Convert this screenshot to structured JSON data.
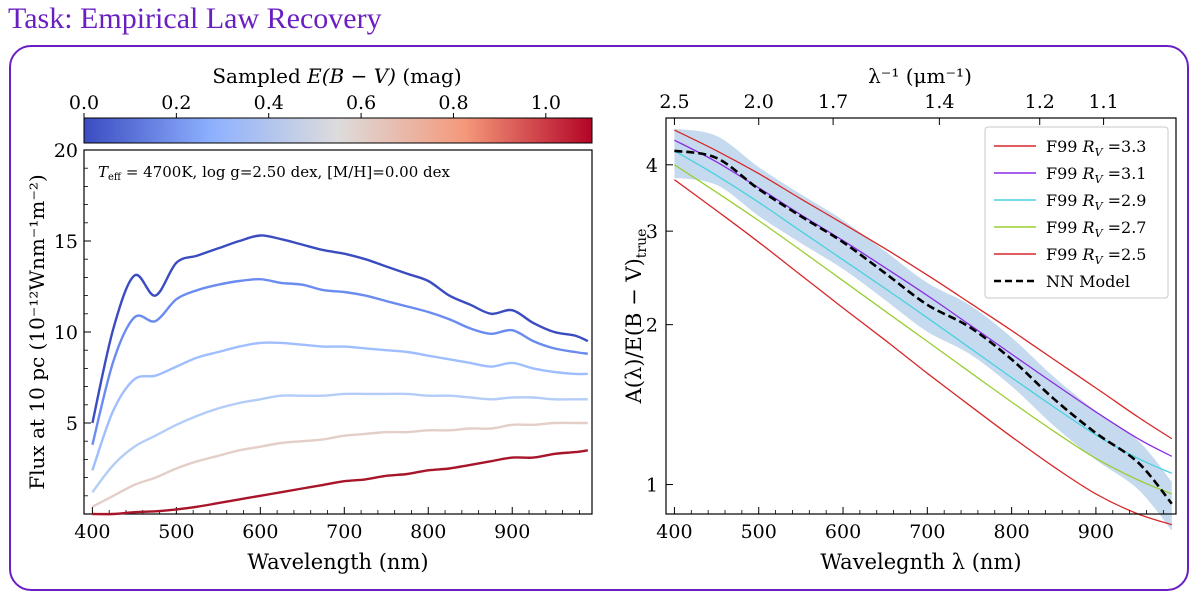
{
  "header": {
    "title": "Task: Empirical Law Recovery"
  },
  "chart_data": [
    {
      "type": "line",
      "title": "",
      "xlabel": "Wavelength (nm)",
      "ylabel": "Flux at 10 pc (10⁻¹²Wnm⁻¹m⁻²)",
      "xlim": [
        390,
        995
      ],
      "ylim": [
        0,
        20
      ],
      "xticks": [
        "400",
        "500",
        "600",
        "700",
        "800",
        "900"
      ],
      "yticks": [
        "5",
        "10",
        "15",
        "20"
      ],
      "annotation": "T_eff = 4700K, log g=2.50 dex, [M/H]=0.00 dex",
      "annotation_parts": {
        "teff": "T",
        "teff_sub": "eff",
        "teff_rest": " = 4700K, log g=2.50 dex, [M/H]=0.00 dex"
      },
      "colorbar": {
        "label": "Sampled E(B − V) (mag)",
        "label_parts": [
          "Sampled ",
          "E(B − V)",
          " (mag)"
        ],
        "range": [
          0.0,
          1.1
        ],
        "ticks": [
          "0.0",
          "0.2",
          "0.4",
          "0.6",
          "0.8",
          "1.0"
        ],
        "colors": [
          "#3b4cc0",
          "#8db0fe",
          "#dddcdc",
          "#f4987a",
          "#b40426"
        ]
      },
      "x": [
        400,
        425,
        450,
        475,
        500,
        525,
        550,
        575,
        600,
        625,
        650,
        675,
        700,
        725,
        750,
        775,
        800,
        825,
        850,
        875,
        900,
        925,
        950,
        975,
        990
      ],
      "series": [
        {
          "name": "E(B-V)=0.00",
          "color": "#3b4cc0",
          "values": [
            5.0,
            10.2,
            13.1,
            12.0,
            13.8,
            14.2,
            14.6,
            15.0,
            15.3,
            15.1,
            14.8,
            14.5,
            14.3,
            14.0,
            13.6,
            13.2,
            12.8,
            12.0,
            11.5,
            11.0,
            11.2,
            10.5,
            10.0,
            9.8,
            9.5
          ]
        },
        {
          "name": "E(B-V)=0.22",
          "color": "#6a8bef",
          "values": [
            3.8,
            8.4,
            10.8,
            10.6,
            11.8,
            12.3,
            12.6,
            12.8,
            12.9,
            12.7,
            12.6,
            12.3,
            12.2,
            12.0,
            11.7,
            11.4,
            11.1,
            10.7,
            10.2,
            9.9,
            10.1,
            9.5,
            9.1,
            8.9,
            8.8
          ]
        },
        {
          "name": "E(B-V)=0.44",
          "color": "#9ebeff",
          "values": [
            2.4,
            5.7,
            7.4,
            7.6,
            8.1,
            8.6,
            8.9,
            9.2,
            9.4,
            9.4,
            9.3,
            9.2,
            9.2,
            9.1,
            9.0,
            8.9,
            8.7,
            8.5,
            8.3,
            8.1,
            8.3,
            8.0,
            7.8,
            7.7,
            7.7
          ]
        },
        {
          "name": "E(B-V)=0.66",
          "color": "#b3cdf7",
          "values": [
            1.2,
            2.7,
            3.7,
            4.3,
            4.9,
            5.4,
            5.8,
            6.1,
            6.3,
            6.5,
            6.5,
            6.5,
            6.6,
            6.6,
            6.6,
            6.6,
            6.5,
            6.5,
            6.4,
            6.3,
            6.4,
            6.4,
            6.3,
            6.3,
            6.3
          ]
        },
        {
          "name": "E(B-V)=0.88",
          "color": "#e3cfc8",
          "values": [
            0.4,
            1.0,
            1.6,
            2.0,
            2.5,
            2.9,
            3.2,
            3.5,
            3.7,
            3.9,
            4.0,
            4.1,
            4.3,
            4.4,
            4.5,
            4.5,
            4.6,
            4.6,
            4.7,
            4.7,
            4.9,
            4.9,
            5.0,
            5.0,
            5.0
          ]
        },
        {
          "name": "E(B-V)=1.10",
          "color": "#a8152a",
          "values": [
            0.0,
            0.0,
            0.1,
            0.15,
            0.25,
            0.4,
            0.6,
            0.8,
            1.0,
            1.2,
            1.4,
            1.6,
            1.8,
            1.9,
            2.1,
            2.2,
            2.4,
            2.5,
            2.7,
            2.9,
            3.1,
            3.1,
            3.3,
            3.4,
            3.5
          ]
        }
      ]
    },
    {
      "type": "line",
      "title": "",
      "xlabel": "Wavelegnth λ (nm)",
      "ylabel": "A(λ)/E(B − V)_true",
      "ylabel_parts": {
        "main": "A(λ)/E(B − V)",
        "sub": "true"
      },
      "xlim": [
        390,
        995
      ],
      "yscale": "log",
      "ylim": [
        0.88,
        4.9
      ],
      "xticks": [
        "400",
        "500",
        "600",
        "700",
        "800",
        "900"
      ],
      "yticks": [
        "1",
        "2",
        "3",
        "4"
      ],
      "top_axis": {
        "label": "λ⁻¹ (μm⁻¹)",
        "ticks": [
          "2.5",
          "2.0",
          "1.7",
          "1.4",
          "1.2",
          "1.1"
        ],
        "tick_values_inv_um": [
          2.5,
          2.0,
          1.7,
          1.4,
          1.2,
          1.1
        ]
      },
      "legend": {
        "position": "top-right"
      },
      "x": [
        400,
        450,
        500,
        550,
        600,
        650,
        700,
        750,
        800,
        850,
        900,
        950,
        990
      ],
      "series": [
        {
          "name": "F99 R_V =3.3",
          "label_parts": [
            "F99 ",
            "R",
            "V",
            " =3.3"
          ],
          "color": "#d62728",
          "dash": "solid",
          "values": [
            4.65,
            4.25,
            3.85,
            3.45,
            3.1,
            2.78,
            2.48,
            2.2,
            1.95,
            1.72,
            1.52,
            1.34,
            1.22
          ]
        },
        {
          "name": "F99 R_V =3.1",
          "label_parts": [
            "F99 ",
            "R",
            "V",
            " =3.1"
          ],
          "color": "#8a2be2",
          "dash": "solid",
          "values": [
            4.45,
            4.05,
            3.62,
            3.22,
            2.88,
            2.56,
            2.27,
            2.0,
            1.76,
            1.55,
            1.37,
            1.22,
            1.13
          ]
        },
        {
          "name": "F99 R_V =2.9",
          "label_parts": [
            "F99 ",
            "R",
            "V",
            " =2.9"
          ],
          "color": "#48d1e0",
          "dash": "solid",
          "values": [
            4.25,
            3.82,
            3.4,
            3.0,
            2.65,
            2.34,
            2.06,
            1.81,
            1.59,
            1.4,
            1.24,
            1.12,
            1.05
          ]
        },
        {
          "name": "F99 R_V =2.7",
          "label_parts": [
            "F99 ",
            "R",
            "V",
            " =2.7"
          ],
          "color": "#9acd32",
          "dash": "solid",
          "values": [
            4.0,
            3.55,
            3.14,
            2.76,
            2.42,
            2.12,
            1.86,
            1.63,
            1.43,
            1.26,
            1.12,
            1.02,
            0.96
          ]
        },
        {
          "name": "F99 R_V =2.5",
          "label_parts": [
            "F99 ",
            "R",
            "V",
            " =2.5"
          ],
          "color": "#d62728",
          "dash": "solid",
          "values": [
            3.75,
            3.28,
            2.86,
            2.48,
            2.15,
            1.87,
            1.62,
            1.41,
            1.23,
            1.08,
            0.96,
            0.88,
            0.84
          ]
        },
        {
          "name": "NN Model",
          "color": "#000000",
          "dash": "dashed",
          "values": [
            4.25,
            4.12,
            3.6,
            3.2,
            2.86,
            2.5,
            2.18,
            1.98,
            1.72,
            1.45,
            1.25,
            1.1,
            0.92
          ]
        }
      ]
    }
  ]
}
